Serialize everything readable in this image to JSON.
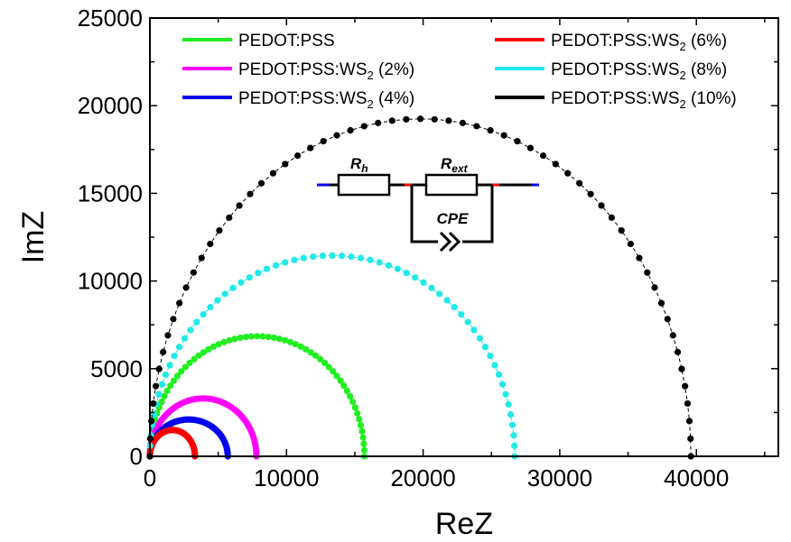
{
  "chart_data": {
    "type": "scatter",
    "xlabel": "ReZ",
    "ylabel": "ImZ",
    "xlim": [
      0,
      46000
    ],
    "ylim": [
      0,
      25000
    ],
    "x_ticks": [
      0,
      10000,
      20000,
      30000,
      40000
    ],
    "y_ticks": [
      0,
      5000,
      10000,
      15000,
      20000,
      25000
    ],
    "x_tick_labels": [
      "0",
      "10000",
      "20000",
      "30000",
      "40000"
    ],
    "y_tick_labels": [
      "0",
      "5000",
      "10000",
      "15000",
      "20000",
      "25000"
    ],
    "grid": false,
    "legend_position": "top",
    "series": [
      {
        "name": "PEDOT:PSS",
        "legend_main": "PEDOT:PSS",
        "legend_sub": "",
        "legend_tail": "",
        "color": "#22ee22",
        "x_start": 0,
        "x_end": 15700,
        "peak_x": 7800,
        "peak_y": 6850,
        "points": 60
      },
      {
        "name": "PEDOT:PSS:WS2 (2%)",
        "legend_main": "PEDOT:PSS:WS",
        "legend_sub": "2",
        "legend_tail": " (2%)",
        "color": "#ff00ff",
        "x_start": 0,
        "x_end": 7800,
        "peak_x": 3900,
        "peak_y": 3300,
        "points": 60
      },
      {
        "name": "PEDOT:PSS:WS2 (4%)",
        "legend_main": "PEDOT:PSS:WS",
        "legend_sub": "2",
        "legend_tail": " (4%)",
        "color": "#0000ee",
        "x_start": 0,
        "x_end": 5700,
        "peak_x": 2850,
        "peak_y": 2100,
        "points": 60
      },
      {
        "name": "PEDOT:PSS:WS2 (6%)",
        "legend_main": "PEDOT:PSS:WS",
        "legend_sub": "2",
        "legend_tail": " (6%)",
        "color": "#ff0000",
        "x_start": 0,
        "x_end": 3300,
        "peak_x": 1650,
        "peak_y": 1500,
        "points": 60
      },
      {
        "name": "PEDOT:PSS:WS2 (8%)",
        "legend_main": "PEDOT:PSS:WS",
        "legend_sub": "2",
        "legend_tail": " (8%)",
        "color": "#22e8e8",
        "x_start": 0,
        "x_end": 26700,
        "peak_x": 13350,
        "peak_y": 11450,
        "points": 60
      },
      {
        "name": "PEDOT:PSS:WS2 (10%)",
        "legend_main": "PEDOT:PSS:WS",
        "legend_sub": "2",
        "legend_tail": " (10%)",
        "color": "#000000",
        "x_start": 0,
        "x_end": 39600,
        "peak_x": 19800,
        "peak_y": 19250,
        "points": 60
      }
    ],
    "inset_circuit": {
      "labels": {
        "rh_main": "R",
        "rh_sub": "h",
        "rext_main": "R",
        "rext_sub": "ext",
        "cpe": "CPE"
      },
      "colors": {
        "left_lead": "#0000ee",
        "node": "#ff0000",
        "right_lead": "#0000ee",
        "wire": "#000000"
      }
    }
  }
}
